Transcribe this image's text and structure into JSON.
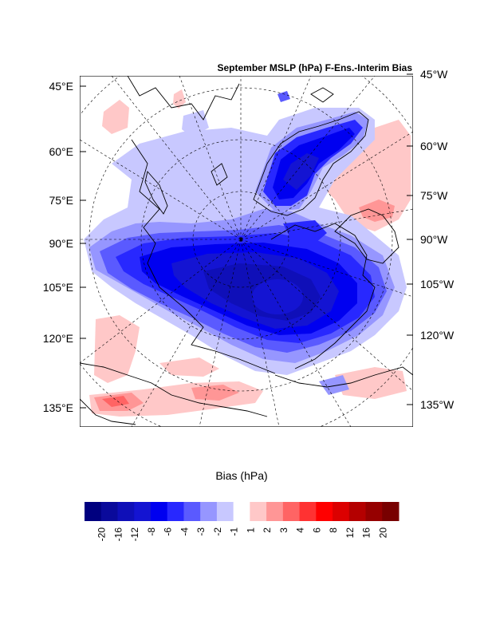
{
  "title": "September MSLP (hPa) F-Ens.-Interim Bias",
  "left_axis_labels": [
    "45°E",
    "60°E",
    "75°E",
    "90°E",
    "105°E",
    "120°E",
    "135°E"
  ],
  "right_axis_labels": [
    "45°W",
    "60°W",
    "75°W",
    "90°W",
    "105°W",
    "120°W",
    "135°W"
  ],
  "colorbar": {
    "title": "Bias (hPa)",
    "tick_labels": [
      "-20",
      "-16",
      "-12",
      "-8",
      "-6",
      "-4",
      "-3",
      "-2",
      "-1",
      "1",
      "2",
      "3",
      "4",
      "6",
      "8",
      "12",
      "16",
      "20"
    ],
    "colors": [
      "#00007f",
      "#0a0a9b",
      "#0f0fb8",
      "#1414d2",
      "#0000f0",
      "#2828ff",
      "#5a5aff",
      "#9696ff",
      "#c8c8ff",
      "#ffffff",
      "#ffc8c8",
      "#ff9696",
      "#ff6464",
      "#ff3232",
      "#ff0000",
      "#dc0000",
      "#b40000",
      "#960000",
      "#780000"
    ]
  },
  "map_colors": {
    "weak_neg": "#c8c8ff",
    "neg_2": "#9696ff",
    "neg_3": "#5a5aff",
    "neg_4": "#2828ff",
    "neg_6": "#0000f0",
    "neg_8": "#1414d2",
    "neg_12": "#0f0fb8",
    "weak_pos": "#ffc8c8",
    "pos_2": "#ff9696",
    "pos_3": "#ff6464"
  }
}
